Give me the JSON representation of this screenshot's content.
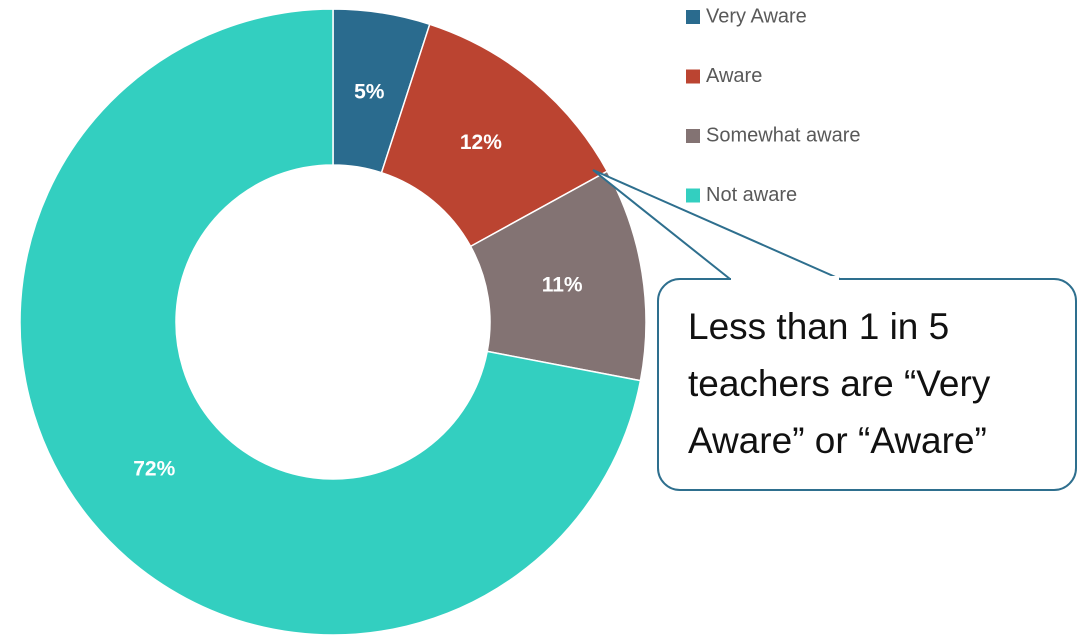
{
  "chart_data": {
    "type": "donut",
    "categories": [
      "Very Aware",
      "Aware",
      "Somewhat aware",
      "Not aware"
    ],
    "values": [
      5,
      12,
      11,
      72
    ],
    "value_labels": [
      "5%",
      "12%",
      "11%",
      "72%"
    ],
    "colors": [
      "#2a6b8e",
      "#bb4431",
      "#837373",
      "#33cfc0"
    ],
    "legend": "top-right",
    "annotation": [
      "Less than 1 in 5",
      "teachers are “Very",
      "Aware” or “Aware”"
    ]
  }
}
